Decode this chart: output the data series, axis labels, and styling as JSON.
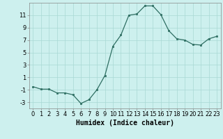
{
  "x": [
    0,
    1,
    2,
    3,
    4,
    5,
    6,
    7,
    8,
    9,
    10,
    11,
    12,
    13,
    14,
    15,
    16,
    17,
    18,
    19,
    20,
    21,
    22,
    23
  ],
  "y": [
    -0.5,
    -0.9,
    -0.9,
    -1.5,
    -1.5,
    -1.8,
    -3.2,
    -2.6,
    -1.0,
    1.3,
    6.0,
    7.8,
    11.0,
    11.2,
    12.5,
    12.5,
    11.1,
    8.5,
    7.2,
    7.0,
    6.3,
    6.2,
    7.2,
    7.6
  ],
  "xlabel": "Humidex (Indice chaleur)",
  "bg_color": "#cdf0ee",
  "line_color": "#2e6e62",
  "marker_color": "#2e6e62",
  "grid_color": "#a8d8d4",
  "ylim": [
    -4,
    13
  ],
  "yticks": [
    -3,
    -1,
    1,
    3,
    5,
    7,
    9,
    11
  ],
  "xticks": [
    0,
    1,
    2,
    3,
    4,
    5,
    6,
    7,
    8,
    9,
    10,
    11,
    12,
    13,
    14,
    15,
    16,
    17,
    18,
    19,
    20,
    21,
    22,
    23
  ],
  "xlabel_fontsize": 7,
  "tick_fontsize": 6
}
